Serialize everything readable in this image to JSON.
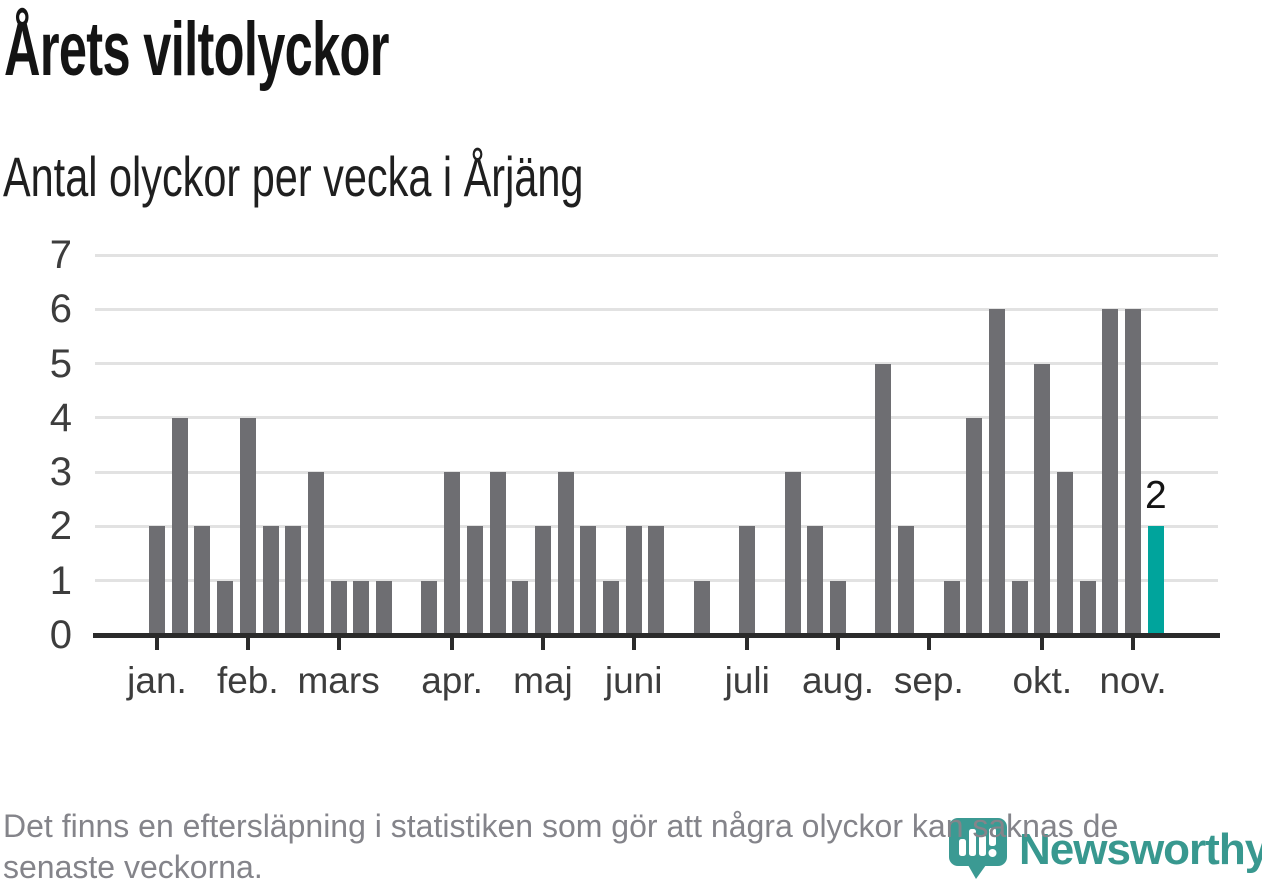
{
  "title": "Årets viltolyckor",
  "subtitle": "Antal olyckor per vecka i Årjäng",
  "footer": {
    "line1": "Det finns en eftersläpning i statistiken som gör att några olyckor kan saknas de",
    "line2": "senaste veckorna."
  },
  "branding": {
    "name": "Newsworthy",
    "icon": "newsworthy-chart-pin-icon",
    "text_color": "#38988F",
    "icon_color": "#3B9A93"
  },
  "colors": {
    "bar": "#6E6E72",
    "highlight": "#00A49C",
    "grid": "#E2E2E2",
    "axis": "#2B2B2B",
    "axis_text": "#3D3D3D",
    "title_text": "#141414",
    "footer_text": "#84848A"
  },
  "chart_data": {
    "type": "bar",
    "title": "Årets viltolyckor",
    "subtitle": "Antal olyckor per vecka i Årjäng",
    "x_unit": "vecka",
    "ylim": [
      0,
      7
    ],
    "yticks": [
      0,
      1,
      2,
      3,
      4,
      5,
      6,
      7
    ],
    "grid": true,
    "legend": false,
    "values": [
      2,
      4,
      2,
      1,
      4,
      2,
      2,
      3,
      1,
      1,
      1,
      0,
      1,
      3,
      2,
      3,
      1,
      2,
      3,
      2,
      1,
      2,
      2,
      0,
      1,
      0,
      2,
      0,
      3,
      2,
      1,
      0,
      5,
      2,
      0,
      1,
      4,
      6,
      1,
      5,
      3,
      1,
      6,
      6,
      2
    ],
    "highlight_last_bar": true,
    "last_bar_label": "2",
    "month_ticks": [
      {
        "label": "jan.",
        "week_index": 0
      },
      {
        "label": "feb.",
        "week_index": 4
      },
      {
        "label": "mars",
        "week_index": 8
      },
      {
        "label": "apr.",
        "week_index": 13
      },
      {
        "label": "maj",
        "week_index": 17
      },
      {
        "label": "juni",
        "week_index": 21
      },
      {
        "label": "juli",
        "week_index": 26
      },
      {
        "label": "aug.",
        "week_index": 30
      },
      {
        "label": "sep.",
        "week_index": 34
      },
      {
        "label": "okt.",
        "week_index": 39
      },
      {
        "label": "nov.",
        "week_index": 43
      }
    ]
  }
}
